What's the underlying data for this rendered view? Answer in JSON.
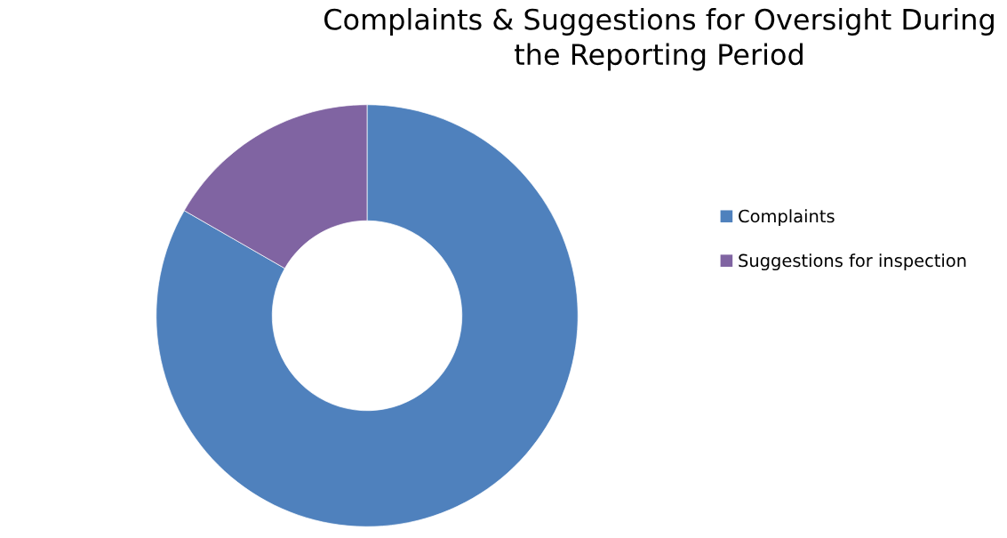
{
  "chart_data": {
    "type": "donut",
    "title": "Complaints & Suggestions for Oversight During the Reporting Period",
    "categories": [
      "Complaints",
      "Suggestions for inspection"
    ],
    "values": [
      83.3,
      16.7
    ],
    "colors": [
      "#4f81bd",
      "#8064a2"
    ],
    "legend": "right"
  }
}
